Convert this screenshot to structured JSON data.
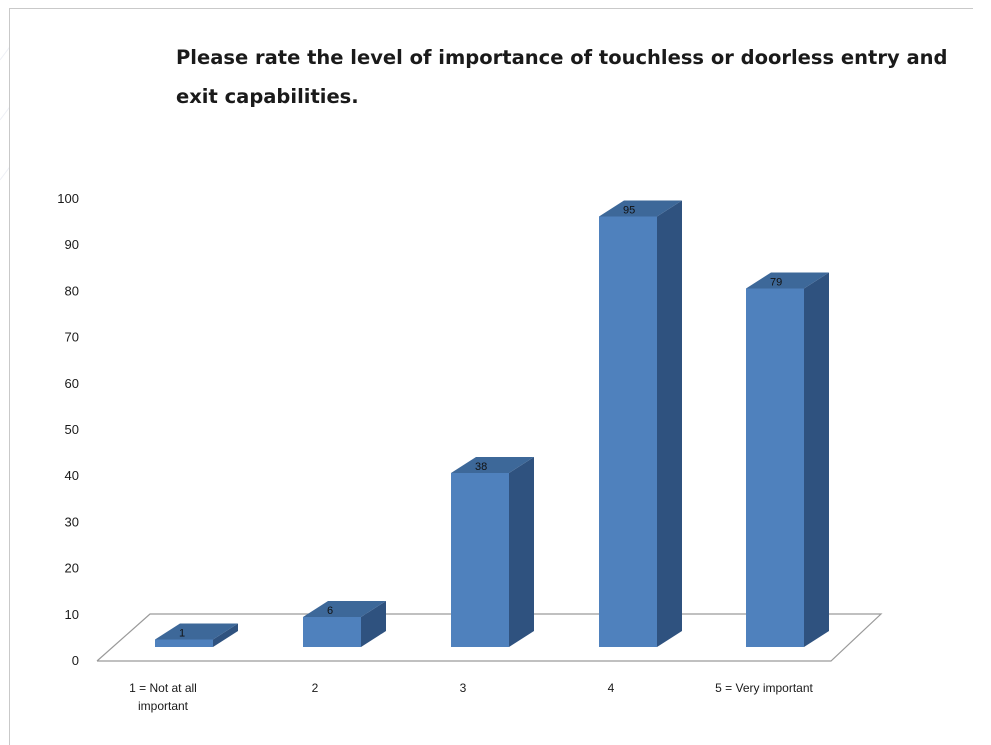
{
  "chart_data": {
    "type": "bar",
    "title": "Please rate the level of importance of touchless or doorless entry and exit capabilities.",
    "xlabel": "",
    "ylabel": "",
    "categories": [
      "1 = Not at all important",
      "2",
      "3",
      "4",
      "5 = Very important"
    ],
    "category_lines": [
      [
        "1 = Not at all",
        "important"
      ],
      [
        "2"
      ],
      [
        "3"
      ],
      [
        "4"
      ],
      [
        "5 = Very important"
      ]
    ],
    "values": [
      1,
      6,
      38,
      95,
      79
    ],
    "data_labels": [
      "1",
      "6",
      "38",
      "95",
      "79"
    ],
    "yticks": [
      "0",
      "10",
      "20",
      "30",
      "40",
      "50",
      "60",
      "70",
      "80",
      "90",
      "100"
    ],
    "ylim": [
      0,
      100
    ],
    "grid": false,
    "legend": "none",
    "three_d": true
  },
  "colors": {
    "bar_front": "#4f81bd",
    "bar_side": "#2f527f",
    "bar_top": "#3d6899",
    "floor_line": "#9a9a9a",
    "text": "#1a1a1a"
  }
}
